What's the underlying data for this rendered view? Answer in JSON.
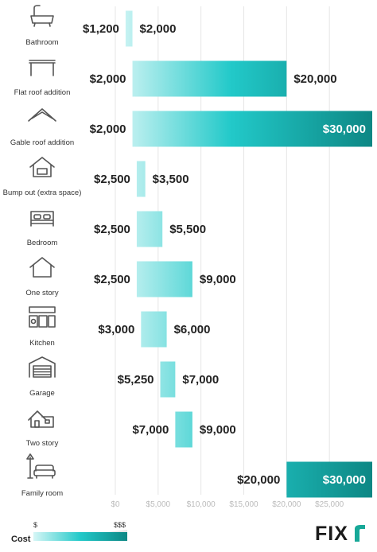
{
  "chart_data": {
    "type": "bar",
    "orientation": "horizontal",
    "subtype": "floating-range",
    "title": "",
    "xlabel": "",
    "ylabel": "",
    "xlim": [
      0,
      30000
    ],
    "ticks": [
      0,
      5000,
      10000,
      15000,
      20000,
      25000
    ],
    "tick_labels": [
      "$0",
      "$5,000",
      "$10,000",
      "$15,000",
      "$20,000",
      "$25,000"
    ],
    "grid": true,
    "categories": [
      {
        "name": "Bathroom",
        "icon": "bathtub-icon",
        "low": 1200,
        "high": 2000,
        "low_label": "$1,200",
        "high_label": "$2,000"
      },
      {
        "name": "Flat roof addition",
        "icon": "flat-roof-icon",
        "low": 2000,
        "high": 20000,
        "low_label": "$2,000",
        "high_label": "$20,000"
      },
      {
        "name": "Gable roof addition",
        "icon": "gable-roof-icon",
        "low": 2000,
        "high": 30000,
        "low_label": "$2,000",
        "high_label": "$30,000"
      },
      {
        "name": "Bump out (extra space)",
        "icon": "bump-out-house-icon",
        "low": 2500,
        "high": 3500,
        "low_label": "$2,500",
        "high_label": "$3,500"
      },
      {
        "name": "Bedroom",
        "icon": "bed-icon",
        "low": 2500,
        "high": 5500,
        "low_label": "$2,500",
        "high_label": "$5,500"
      },
      {
        "name": "One story",
        "icon": "house-icon",
        "low": 2500,
        "high": 9000,
        "low_label": "$2,500",
        "high_label": "$9,000"
      },
      {
        "name": "Kitchen",
        "icon": "kitchen-icon",
        "low": 3000,
        "high": 6000,
        "low_label": "$3,000",
        "high_label": "$6,000"
      },
      {
        "name": "Garage",
        "icon": "garage-icon",
        "low": 5250,
        "high": 7000,
        "low_label": "$5,250",
        "high_label": "$7,000"
      },
      {
        "name": "Two story",
        "icon": "two-story-house-icon",
        "low": 7000,
        "high": 9000,
        "low_label": "$7,000",
        "high_label": "$9,000"
      },
      {
        "name": "Family room",
        "icon": "sofa-lamp-icon",
        "low": 20000,
        "high": 30000,
        "low_label": "$20,000",
        "high_label": "$30,000"
      }
    ],
    "colors": {
      "low": "#c8f2f2",
      "mid": "#1fc8c8",
      "high": "#0e8e8a"
    }
  },
  "legend": {
    "title": "Cost",
    "low_label": "$",
    "high_label": "$$$"
  },
  "brand": {
    "logo_text": "FIXR",
    "color": "#1a1a1a",
    "accent": "#17a898"
  }
}
